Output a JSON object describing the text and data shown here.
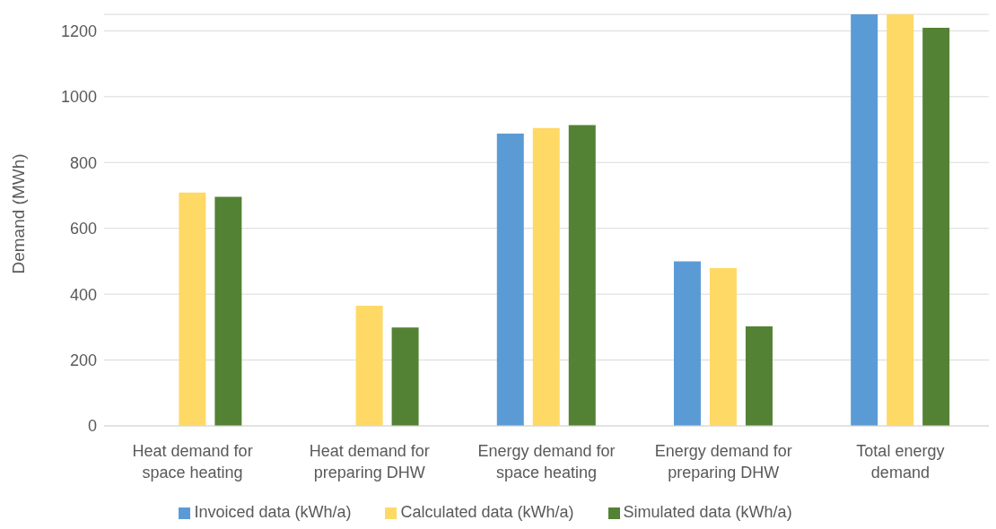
{
  "chart_data": {
    "type": "bar",
    "ylabel": "Demand (MWh)",
    "categories": [
      "Heat demand for space heating",
      "Heat demand for preparing DHW",
      "Energy demand for space heating",
      "Energy demand for preparing DHW",
      "Total energy demand"
    ],
    "series": [
      {
        "name": "Invoiced data (kWh/a)",
        "color": "#5b9bd5",
        "values": [
          null,
          null,
          888,
          500,
          1250
        ]
      },
      {
        "name": "Calculated data (kWh/a)",
        "color": "#ffd966",
        "values": [
          709,
          365,
          905,
          479,
          1250
        ]
      },
      {
        "name": "Simulated data (kWh/a)",
        "color": "#548235",
        "values": [
          696,
          299,
          914,
          302,
          1209
        ]
      }
    ],
    "ylim": [
      0,
      1250
    ],
    "yticks": [
      0,
      200,
      400,
      600,
      800,
      1000,
      1200
    ],
    "grid": "y",
    "legend": "bottom"
  }
}
